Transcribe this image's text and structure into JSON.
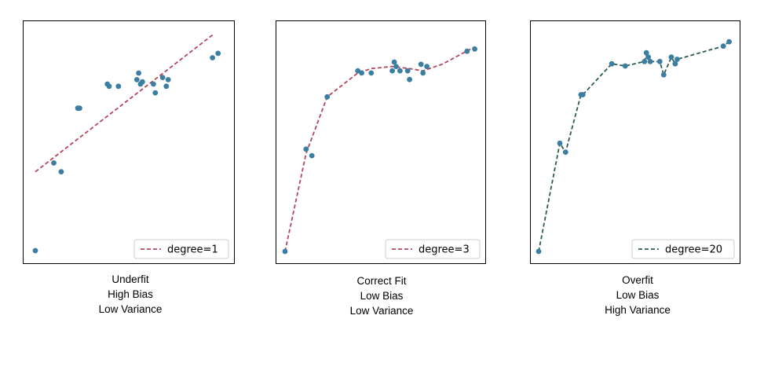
{
  "chart_data": [
    {
      "type": "scatter",
      "x_range": [
        0,
        1
      ],
      "y_range": [
        0,
        1
      ],
      "grid": false,
      "legend_placement": "lower right",
      "points": {
        "color": "#3b7ea1",
        "x": [
          0.0,
          0.1,
          0.14,
          0.23,
          0.24,
          0.39,
          0.4,
          0.45,
          0.55,
          0.56,
          0.57,
          0.58,
          0.64,
          0.65,
          0.69,
          0.71,
          0.72,
          0.96,
          0.99
        ],
        "y": [
          0.0,
          0.4,
          0.36,
          0.65,
          0.65,
          0.76,
          0.75,
          0.75,
          0.78,
          0.81,
          0.76,
          0.77,
          0.76,
          0.72,
          0.79,
          0.75,
          0.78,
          0.88,
          0.9
        ]
      },
      "fit": {
        "label": "degree=1",
        "color": "#b5475c",
        "dashed": true,
        "x": [
          0.0,
          0.97
        ],
        "y": [
          0.36,
          0.99
        ]
      },
      "caption": [
        "Underfit",
        "High Bias",
        "Low Variance"
      ]
    },
    {
      "type": "scatter",
      "x_range": [
        0,
        1
      ],
      "y_range": [
        0,
        1
      ],
      "grid": false,
      "legend_placement": "lower right",
      "points": {
        "color": "#3b7ea1",
        "x": [
          0.0,
          0.11,
          0.14,
          0.22,
          0.38,
          0.4,
          0.45,
          0.56,
          0.57,
          0.58,
          0.6,
          0.64,
          0.65,
          0.71,
          0.72,
          0.74,
          0.95,
          0.99
        ],
        "y": [
          0.0,
          0.47,
          0.44,
          0.71,
          0.83,
          0.82,
          0.82,
          0.83,
          0.87,
          0.85,
          0.83,
          0.83,
          0.79,
          0.86,
          0.82,
          0.85,
          0.92,
          0.93
        ],
        "color_2": "#3b7ea1"
      },
      "fit": {
        "label": "degree=3",
        "color": "#b5475c",
        "dashed": true,
        "x": [
          0.0,
          0.11,
          0.22,
          0.38,
          0.45,
          0.56,
          0.65,
          0.72,
          0.82,
          0.99
        ],
        "y": [
          0.0,
          0.45,
          0.71,
          0.82,
          0.84,
          0.85,
          0.84,
          0.83,
          0.86,
          0.94
        ]
      },
      "caption": [
        "Correct Fit",
        "Low Bias",
        "Low Variance"
      ]
    },
    {
      "type": "scatter",
      "x_range": [
        0,
        1
      ],
      "y_range": [
        0,
        1
      ],
      "grid": false,
      "legend_placement": "lower right",
      "points": {
        "color": "#3b7ea1",
        "x": [
          0.0,
          0.11,
          0.14,
          0.22,
          0.23,
          0.38,
          0.45,
          0.55,
          0.56,
          0.57,
          0.58,
          0.63,
          0.65,
          0.69,
          0.71,
          0.72,
          0.96,
          0.99
        ],
        "y": [
          0.0,
          0.49,
          0.45,
          0.71,
          0.71,
          0.85,
          0.84,
          0.86,
          0.9,
          0.88,
          0.86,
          0.86,
          0.8,
          0.88,
          0.85,
          0.87,
          0.93,
          0.95
        ]
      },
      "fit": {
        "label": "degree=20",
        "color": "#2c5e50",
        "dashed": true,
        "x": [
          0.0,
          0.11,
          0.14,
          0.22,
          0.23,
          0.38,
          0.45,
          0.55,
          0.56,
          0.57,
          0.58,
          0.63,
          0.65,
          0.69,
          0.71,
          0.72,
          0.96,
          0.99
        ],
        "y": [
          0.0,
          0.49,
          0.45,
          0.71,
          0.71,
          0.85,
          0.84,
          0.86,
          0.9,
          0.88,
          0.86,
          0.86,
          0.8,
          0.88,
          0.85,
          0.87,
          0.93,
          0.95
        ]
      },
      "caption": [
        "Overfit",
        "Low Bias",
        "High Variance"
      ]
    }
  ]
}
